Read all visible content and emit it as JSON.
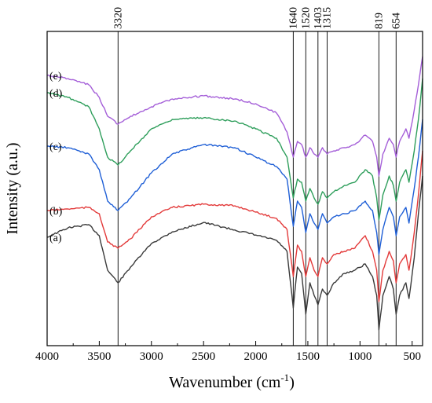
{
  "chart_data": {
    "type": "line",
    "xlabel": "Wavenumber (cm",
    "xlabel_sup": "-1",
    "xlabel_close": ")",
    "ylabel": "Intensity (a.u.)",
    "xlim": [
      4000,
      400
    ],
    "x_direction": "reversed",
    "x_ticks": [
      4000,
      3500,
      3000,
      2500,
      2000,
      1500,
      1000,
      500
    ],
    "y_ticks_shown": false,
    "legend": "none",
    "grid": false,
    "reference_lines": [
      {
        "label": "3320",
        "x": 3320
      },
      {
        "label": "1640",
        "x": 1640
      },
      {
        "label": "1520",
        "x": 1520
      },
      {
        "label": "1403",
        "x": 1403
      },
      {
        "label": "1315",
        "x": 1315
      },
      {
        "label": "819",
        "x": 819
      },
      {
        "label": "654",
        "x": 654
      }
    ],
    "series": [
      {
        "name": "(a)",
        "color": "#3a3a3a",
        "points": [
          [
            4000,
            0.345
          ],
          [
            3800,
            0.375
          ],
          [
            3600,
            0.385
          ],
          [
            3500,
            0.35
          ],
          [
            3420,
            0.24
          ],
          [
            3320,
            0.2
          ],
          [
            3200,
            0.25
          ],
          [
            3000,
            0.325
          ],
          [
            2800,
            0.362
          ],
          [
            2500,
            0.392
          ],
          [
            2200,
            0.368
          ],
          [
            2000,
            0.352
          ],
          [
            1800,
            0.335
          ],
          [
            1700,
            0.3
          ],
          [
            1640,
            0.12
          ],
          [
            1600,
            0.25
          ],
          [
            1560,
            0.23
          ],
          [
            1520,
            0.1
          ],
          [
            1480,
            0.2
          ],
          [
            1440,
            0.16
          ],
          [
            1403,
            0.13
          ],
          [
            1360,
            0.18
          ],
          [
            1315,
            0.16
          ],
          [
            1250,
            0.2
          ],
          [
            1150,
            0.23
          ],
          [
            1050,
            0.24
          ],
          [
            950,
            0.26
          ],
          [
            880,
            0.22
          ],
          [
            840,
            0.16
          ],
          [
            819,
            0.05
          ],
          [
            780,
            0.16
          ],
          [
            720,
            0.22
          ],
          [
            680,
            0.18
          ],
          [
            654,
            0.1
          ],
          [
            620,
            0.16
          ],
          [
            560,
            0.2
          ],
          [
            530,
            0.15
          ],
          [
            480,
            0.28
          ],
          [
            440,
            0.42
          ],
          [
            400,
            0.54
          ]
        ]
      },
      {
        "name": "(b)",
        "color": "#e33b3b",
        "points": [
          [
            4000,
            0.43
          ],
          [
            3800,
            0.435
          ],
          [
            3600,
            0.44
          ],
          [
            3500,
            0.42
          ],
          [
            3420,
            0.33
          ],
          [
            3320,
            0.31
          ],
          [
            3200,
            0.34
          ],
          [
            3000,
            0.41
          ],
          [
            2800,
            0.44
          ],
          [
            2500,
            0.45
          ],
          [
            2200,
            0.445
          ],
          [
            2000,
            0.425
          ],
          [
            1800,
            0.405
          ],
          [
            1700,
            0.37
          ],
          [
            1640,
            0.22
          ],
          [
            1600,
            0.32
          ],
          [
            1560,
            0.3
          ],
          [
            1520,
            0.22
          ],
          [
            1480,
            0.28
          ],
          [
            1440,
            0.24
          ],
          [
            1403,
            0.22
          ],
          [
            1360,
            0.28
          ],
          [
            1315,
            0.26
          ],
          [
            1250,
            0.29
          ],
          [
            1150,
            0.3
          ],
          [
            1050,
            0.31
          ],
          [
            950,
            0.35
          ],
          [
            880,
            0.3
          ],
          [
            840,
            0.24
          ],
          [
            819,
            0.14
          ],
          [
            780,
            0.24
          ],
          [
            720,
            0.3
          ],
          [
            680,
            0.27
          ],
          [
            654,
            0.2
          ],
          [
            620,
            0.26
          ],
          [
            560,
            0.29
          ],
          [
            530,
            0.24
          ],
          [
            480,
            0.36
          ],
          [
            440,
            0.48
          ],
          [
            400,
            0.62
          ]
        ]
      },
      {
        "name": "(c)",
        "color": "#1f5fd6",
        "points": [
          [
            4000,
            0.635
          ],
          [
            3800,
            0.63
          ],
          [
            3600,
            0.61
          ],
          [
            3500,
            0.56
          ],
          [
            3420,
            0.46
          ],
          [
            3320,
            0.43
          ],
          [
            3200,
            0.47
          ],
          [
            3000,
            0.55
          ],
          [
            2800,
            0.61
          ],
          [
            2500,
            0.64
          ],
          [
            2200,
            0.63
          ],
          [
            2000,
            0.6
          ],
          [
            1800,
            0.57
          ],
          [
            1700,
            0.53
          ],
          [
            1640,
            0.38
          ],
          [
            1600,
            0.46
          ],
          [
            1560,
            0.44
          ],
          [
            1520,
            0.36
          ],
          [
            1480,
            0.42
          ],
          [
            1440,
            0.39
          ],
          [
            1403,
            0.37
          ],
          [
            1360,
            0.42
          ],
          [
            1315,
            0.39
          ],
          [
            1250,
            0.41
          ],
          [
            1150,
            0.42
          ],
          [
            1050,
            0.43
          ],
          [
            950,
            0.46
          ],
          [
            880,
            0.43
          ],
          [
            840,
            0.36
          ],
          [
            819,
            0.29
          ],
          [
            780,
            0.37
          ],
          [
            720,
            0.44
          ],
          [
            680,
            0.41
          ],
          [
            654,
            0.35
          ],
          [
            620,
            0.41
          ],
          [
            560,
            0.44
          ],
          [
            530,
            0.39
          ],
          [
            480,
            0.5
          ],
          [
            440,
            0.6
          ],
          [
            400,
            0.72
          ]
        ]
      },
      {
        "name": "(d)",
        "color": "#2e9e5b",
        "points": [
          [
            4000,
            0.805
          ],
          [
            3800,
            0.79
          ],
          [
            3600,
            0.76
          ],
          [
            3500,
            0.69
          ],
          [
            3420,
            0.6
          ],
          [
            3320,
            0.575
          ],
          [
            3200,
            0.62
          ],
          [
            3000,
            0.69
          ],
          [
            2800,
            0.72
          ],
          [
            2500,
            0.725
          ],
          [
            2200,
            0.715
          ],
          [
            2000,
            0.69
          ],
          [
            1800,
            0.66
          ],
          [
            1700,
            0.6
          ],
          [
            1640,
            0.47
          ],
          [
            1600,
            0.53
          ],
          [
            1560,
            0.52
          ],
          [
            1520,
            0.46
          ],
          [
            1480,
            0.5
          ],
          [
            1440,
            0.47
          ],
          [
            1403,
            0.45
          ],
          [
            1360,
            0.49
          ],
          [
            1315,
            0.47
          ],
          [
            1250,
            0.49
          ],
          [
            1150,
            0.51
          ],
          [
            1050,
            0.52
          ],
          [
            950,
            0.56
          ],
          [
            880,
            0.54
          ],
          [
            840,
            0.47
          ],
          [
            819,
            0.4
          ],
          [
            780,
            0.48
          ],
          [
            720,
            0.54
          ],
          [
            680,
            0.51
          ],
          [
            654,
            0.46
          ],
          [
            620,
            0.52
          ],
          [
            560,
            0.56
          ],
          [
            530,
            0.52
          ],
          [
            480,
            0.62
          ],
          [
            440,
            0.72
          ],
          [
            400,
            0.85
          ]
        ]
      },
      {
        "name": "(e)",
        "color": "#a45ed8",
        "points": [
          [
            4000,
            0.86
          ],
          [
            3800,
            0.85
          ],
          [
            3600,
            0.83
          ],
          [
            3500,
            0.79
          ],
          [
            3420,
            0.73
          ],
          [
            3320,
            0.705
          ],
          [
            3200,
            0.73
          ],
          [
            3000,
            0.76
          ],
          [
            2800,
            0.785
          ],
          [
            2500,
            0.795
          ],
          [
            2200,
            0.785
          ],
          [
            2000,
            0.77
          ],
          [
            1800,
            0.74
          ],
          [
            1700,
            0.68
          ],
          [
            1640,
            0.6
          ],
          [
            1600,
            0.65
          ],
          [
            1560,
            0.64
          ],
          [
            1520,
            0.6
          ],
          [
            1480,
            0.63
          ],
          [
            1440,
            0.61
          ],
          [
            1403,
            0.6
          ],
          [
            1360,
            0.63
          ],
          [
            1315,
            0.61
          ],
          [
            1250,
            0.62
          ],
          [
            1150,
            0.63
          ],
          [
            1050,
            0.64
          ],
          [
            950,
            0.67
          ],
          [
            880,
            0.65
          ],
          [
            840,
            0.6
          ],
          [
            819,
            0.54
          ],
          [
            780,
            0.61
          ],
          [
            720,
            0.66
          ],
          [
            680,
            0.64
          ],
          [
            654,
            0.6
          ],
          [
            620,
            0.65
          ],
          [
            560,
            0.69
          ],
          [
            530,
            0.66
          ],
          [
            480,
            0.75
          ],
          [
            440,
            0.83
          ],
          [
            400,
            0.92
          ]
        ]
      }
    ]
  }
}
